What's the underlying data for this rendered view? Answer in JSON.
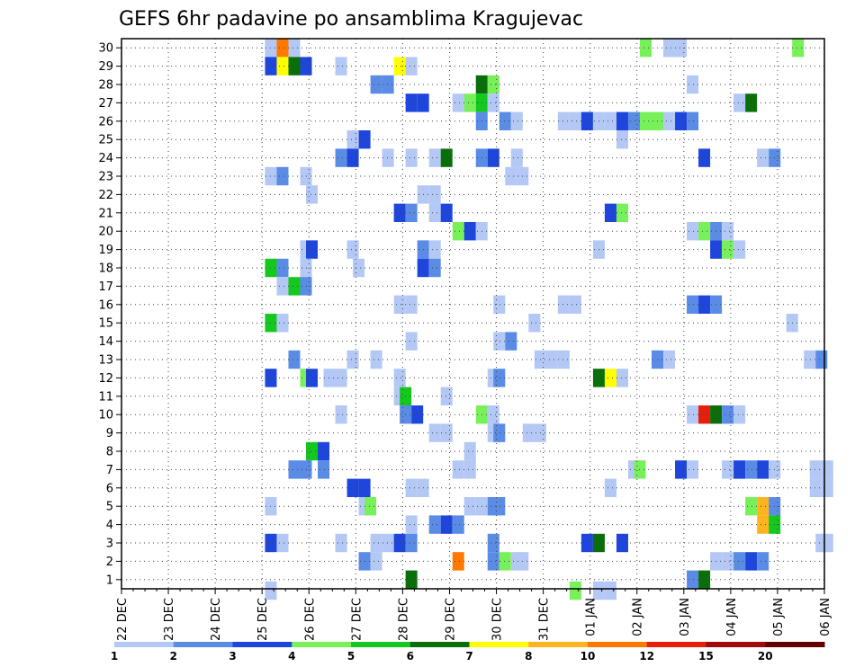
{
  "chart_data": {
    "type": "heatmap",
    "title": "GEFS 6hr padavine po ansamblima Kragujevac",
    "xlabel": "",
    "ylabel": "",
    "y_ticks": [
      "1",
      "2",
      "3",
      "4",
      "5",
      "6",
      "7",
      "8",
      "9",
      "10",
      "11",
      "12",
      "13",
      "14",
      "15",
      "16",
      "17",
      "18",
      "19",
      "20",
      "21",
      "22",
      "23",
      "24",
      "25",
      "26",
      "27",
      "28",
      "29",
      "30"
    ],
    "ylim": [
      0.5,
      30.5
    ],
    "x_ticks": [
      "22 DEC",
      "23 DEC",
      "24 DEC",
      "25 DEC",
      "26 DEC",
      "27 DEC",
      "28 DEC",
      "29 DEC",
      "30 DEC",
      "31 DEC",
      "01 JAN",
      "02 JAN",
      "03 JAN",
      "04 JAN",
      "05 JAN",
      "06 JAN"
    ],
    "x_steps_per_day": 4,
    "x_range_steps": [
      0,
      60
    ],
    "grid": true,
    "legend": "bottom colorbar",
    "colorbar": {
      "labels": [
        "1",
        "2",
        "3",
        "4",
        "5",
        "6",
        "7",
        "8",
        "10",
        "12",
        "15",
        "20"
      ],
      "colors": [
        "#b4c8f5",
        "#5a8ce6",
        "#1e46dc",
        "#78f05a",
        "#14c81e",
        "#0a6e0a",
        "#ffff00",
        "#ffb41e",
        "#ff7800",
        "#e61e0a",
        "#a00a0a",
        "#640000"
      ]
    },
    "cells": [
      [
        30,
        12.75,
        1
      ],
      [
        30,
        13.75,
        9
      ],
      [
        30,
        14.75,
        1
      ],
      [
        30,
        44.75,
        4
      ],
      [
        30,
        46.75,
        1
      ],
      [
        30,
        47.75,
        1
      ],
      [
        30,
        57.75,
        4
      ],
      [
        29,
        12.75,
        3
      ],
      [
        29,
        13.75,
        7
      ],
      [
        29,
        14.75,
        6
      ],
      [
        29,
        15.75,
        3
      ],
      [
        29,
        18.75,
        1
      ],
      [
        29,
        23.75,
        7
      ],
      [
        29,
        24.75,
        1
      ],
      [
        28,
        21.75,
        2
      ],
      [
        28,
        22.75,
        2
      ],
      [
        28,
        30.75,
        6
      ],
      [
        28,
        31.75,
        4
      ],
      [
        28,
        48.75,
        1
      ],
      [
        27,
        24.75,
        3
      ],
      [
        27,
        25.75,
        3
      ],
      [
        27,
        28.75,
        1
      ],
      [
        27,
        29.75,
        4
      ],
      [
        27,
        30.75,
        5
      ],
      [
        27,
        31.75,
        1
      ],
      [
        27,
        52.75,
        1
      ],
      [
        27,
        53.75,
        6
      ],
      [
        26,
        30.75,
        2
      ],
      [
        26,
        32.75,
        2
      ],
      [
        26,
        33.75,
        1
      ],
      [
        26,
        37.75,
        1
      ],
      [
        26,
        38.75,
        1
      ],
      [
        26,
        39.75,
        3
      ],
      [
        26,
        40.75,
        1
      ],
      [
        26,
        41.75,
        1
      ],
      [
        26,
        42.75,
        3
      ],
      [
        26,
        43.75,
        2
      ],
      [
        26,
        44.75,
        4
      ],
      [
        26,
        45.75,
        4
      ],
      [
        26,
        46.75,
        1
      ],
      [
        26,
        47.75,
        3
      ],
      [
        26,
        48.75,
        2
      ],
      [
        25,
        19.75,
        1
      ],
      [
        25,
        20.75,
        3
      ],
      [
        25,
        42.75,
        1
      ],
      [
        24,
        18.75,
        2
      ],
      [
        24,
        19.75,
        3
      ],
      [
        24,
        22.75,
        1
      ],
      [
        24,
        24.75,
        1
      ],
      [
        24,
        26.75,
        1
      ],
      [
        24,
        27.75,
        6
      ],
      [
        24,
        30.75,
        2
      ],
      [
        24,
        31.75,
        3
      ],
      [
        24,
        33.75,
        1
      ],
      [
        24,
        49.75,
        3
      ],
      [
        24,
        54.75,
        1
      ],
      [
        24,
        55.75,
        2
      ],
      [
        23,
        12.75,
        1
      ],
      [
        23,
        13.75,
        2
      ],
      [
        23,
        15.75,
        1
      ],
      [
        23,
        33.25,
        1
      ],
      [
        23,
        34.25,
        1
      ],
      [
        22,
        16.25,
        1
      ],
      [
        22,
        25.75,
        1
      ],
      [
        22,
        26.75,
        1
      ],
      [
        21,
        23.75,
        3
      ],
      [
        21,
        24.75,
        2
      ],
      [
        21,
        26.75,
        1
      ],
      [
        21,
        27.75,
        3
      ],
      [
        21,
        41.75,
        3
      ],
      [
        21,
        42.75,
        4
      ],
      [
        20,
        28.75,
        4
      ],
      [
        20,
        29.75,
        3
      ],
      [
        20,
        30.75,
        1
      ],
      [
        20,
        48.75,
        1
      ],
      [
        20,
        49.75,
        4
      ],
      [
        20,
        50.75,
        2
      ],
      [
        20,
        51.75,
        1
      ],
      [
        19,
        15.75,
        1
      ],
      [
        19,
        16.25,
        3
      ],
      [
        19,
        19.75,
        1
      ],
      [
        19,
        25.75,
        2
      ],
      [
        19,
        26.75,
        1
      ],
      [
        19,
        40.75,
        1
      ],
      [
        19,
        50.75,
        3
      ],
      [
        19,
        51.75,
        4
      ],
      [
        19,
        52.75,
        1
      ],
      [
        18,
        12.75,
        5
      ],
      [
        18,
        13.75,
        2
      ],
      [
        18,
        15.75,
        1
      ],
      [
        18,
        20.25,
        1
      ],
      [
        18,
        25.75,
        3
      ],
      [
        18,
        26.75,
        2
      ],
      [
        17,
        13.75,
        1
      ],
      [
        17,
        14.75,
        5
      ],
      [
        17,
        15.75,
        2
      ],
      [
        16,
        23.75,
        1
      ],
      [
        16,
        24.75,
        1
      ],
      [
        16,
        32.25,
        1
      ],
      [
        16,
        37.75,
        1
      ],
      [
        16,
        38.75,
        1
      ],
      [
        16,
        48.75,
        2
      ],
      [
        16,
        49.75,
        3
      ],
      [
        16,
        50.75,
        2
      ],
      [
        15,
        12.75,
        5
      ],
      [
        15,
        13.75,
        1
      ],
      [
        15,
        35.25,
        1
      ],
      [
        15,
        57.25,
        1
      ],
      [
        14,
        24.75,
        1
      ],
      [
        14,
        32.25,
        1
      ],
      [
        14,
        33.25,
        2
      ],
      [
        13,
        14.75,
        2
      ],
      [
        13,
        19.75,
        1
      ],
      [
        13,
        21.75,
        1
      ],
      [
        13,
        35.75,
        1
      ],
      [
        13,
        36.75,
        1
      ],
      [
        13,
        37.75,
        1
      ],
      [
        13,
        45.75,
        2
      ],
      [
        13,
        46.75,
        1
      ],
      [
        13,
        58.75,
        1
      ],
      [
        13,
        59.75,
        2
      ],
      [
        12,
        12.75,
        3
      ],
      [
        12,
        15.75,
        4
      ],
      [
        12,
        16.25,
        3
      ],
      [
        12,
        17.75,
        1
      ],
      [
        12,
        18.75,
        1
      ],
      [
        12,
        23.75,
        1
      ],
      [
        12,
        31.75,
        1
      ],
      [
        12,
        32.25,
        2
      ],
      [
        12,
        40.75,
        6
      ],
      [
        12,
        41.75,
        7
      ],
      [
        12,
        42.75,
        1
      ],
      [
        11,
        23.75,
        1
      ],
      [
        11,
        24.25,
        5
      ],
      [
        11,
        27.75,
        1
      ],
      [
        10,
        18.75,
        1
      ],
      [
        10,
        24.25,
        2
      ],
      [
        10,
        25.25,
        3
      ],
      [
        10,
        30.75,
        4
      ],
      [
        10,
        31.75,
        1
      ],
      [
        10,
        48.75,
        1
      ],
      [
        10,
        49.75,
        10
      ],
      [
        10,
        50.75,
        6
      ],
      [
        10,
        51.75,
        2
      ],
      [
        10,
        52.75,
        1
      ],
      [
        9,
        26.75,
        1
      ],
      [
        9,
        27.75,
        1
      ],
      [
        9,
        31.75,
        1
      ],
      [
        9,
        32.25,
        2
      ],
      [
        9,
        34.75,
        1
      ],
      [
        9,
        35.75,
        1
      ],
      [
        8,
        16.25,
        5
      ],
      [
        8,
        17.25,
        3
      ],
      [
        8,
        29.75,
        1
      ],
      [
        7,
        14.75,
        2
      ],
      [
        7,
        15.75,
        2
      ],
      [
        7,
        17.25,
        2
      ],
      [
        7,
        28.75,
        1
      ],
      [
        7,
        29.75,
        1
      ],
      [
        7,
        43.75,
        1
      ],
      [
        7,
        44.25,
        4
      ],
      [
        7,
        47.75,
        3
      ],
      [
        7,
        48.75,
        1
      ],
      [
        7,
        51.75,
        1
      ],
      [
        7,
        52.75,
        3
      ],
      [
        7,
        53.75,
        2
      ],
      [
        7,
        54.75,
        3
      ],
      [
        7,
        55.75,
        1
      ],
      [
        7,
        59.25,
        1
      ],
      [
        7,
        60.25,
        1
      ],
      [
        6,
        19.75,
        3
      ],
      [
        6,
        20.75,
        3
      ],
      [
        6,
        24.75,
        1
      ],
      [
        6,
        25.75,
        1
      ],
      [
        6,
        41.75,
        1
      ],
      [
        6,
        59.25,
        1
      ],
      [
        6,
        60.25,
        1
      ],
      [
        5,
        12.75,
        1
      ],
      [
        5,
        20.75,
        1
      ],
      [
        5,
        21.25,
        4
      ],
      [
        5,
        29.75,
        1
      ],
      [
        5,
        30.75,
        1
      ],
      [
        5,
        31.75,
        2
      ],
      [
        5,
        32.25,
        2
      ],
      [
        5,
        53.75,
        4
      ],
      [
        5,
        54.75,
        8
      ],
      [
        5,
        55.75,
        2
      ],
      [
        4,
        24.75,
        1
      ],
      [
        4,
        26.75,
        2
      ],
      [
        4,
        27.75,
        3
      ],
      [
        4,
        28.75,
        2
      ],
      [
        4,
        54.75,
        8
      ],
      [
        4,
        55.75,
        5
      ],
      [
        3,
        12.75,
        3
      ],
      [
        3,
        13.75,
        1
      ],
      [
        3,
        18.75,
        1
      ],
      [
        3,
        21.75,
        1
      ],
      [
        3,
        22.75,
        1
      ],
      [
        3,
        23.75,
        3
      ],
      [
        3,
        24.75,
        2
      ],
      [
        3,
        31.75,
        2
      ],
      [
        3,
        39.75,
        3
      ],
      [
        3,
        40.75,
        6
      ],
      [
        3,
        42.75,
        3
      ],
      [
        3,
        59.75,
        1
      ],
      [
        3,
        60.25,
        1
      ],
      [
        2,
        20.75,
        2
      ],
      [
        2,
        21.75,
        1
      ],
      [
        2,
        28.75,
        9
      ],
      [
        2,
        31.75,
        2
      ],
      [
        2,
        32.75,
        4
      ],
      [
        2,
        33.75,
        1
      ],
      [
        2,
        34.25,
        1
      ],
      [
        2,
        50.75,
        1
      ],
      [
        2,
        51.75,
        1
      ],
      [
        2,
        52.75,
        2
      ],
      [
        2,
        53.75,
        3
      ],
      [
        2,
        54.75,
        2
      ],
      [
        1,
        24.75,
        6
      ],
      [
        1,
        48.75,
        2
      ],
      [
        1,
        49.75,
        6
      ],
      [
        0.4,
        12.75,
        1
      ],
      [
        0.4,
        38.75,
        4
      ],
      [
        0.4,
        40.75,
        1
      ],
      [
        0.4,
        41.75,
        1
      ]
    ]
  }
}
